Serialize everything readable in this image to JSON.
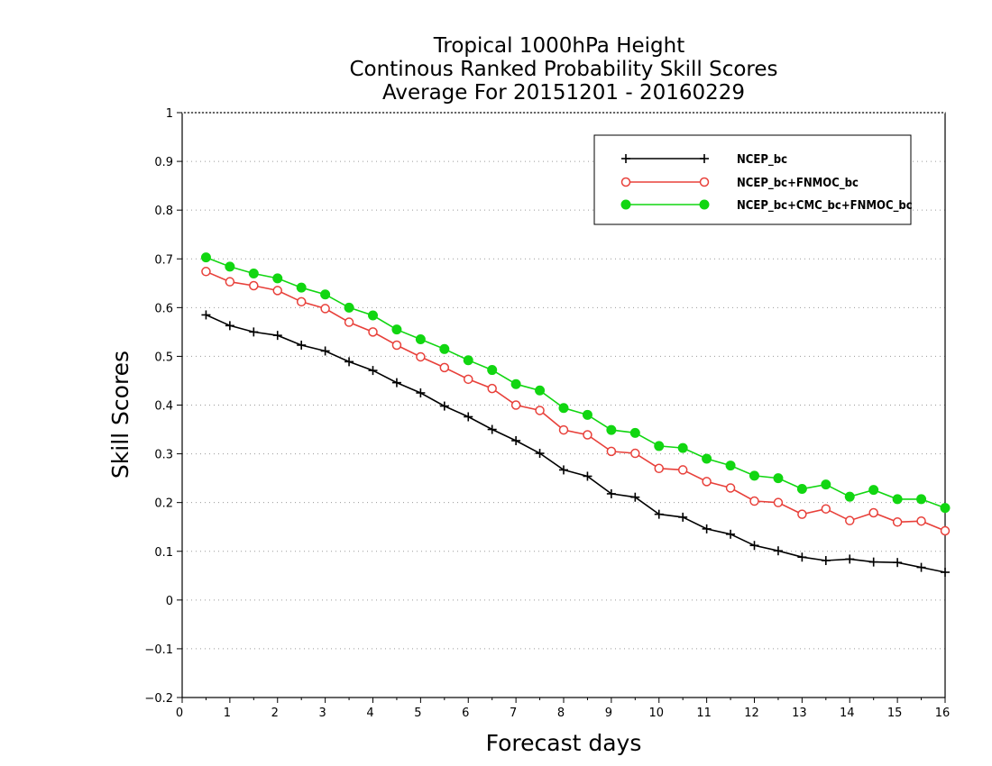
{
  "chart_data": {
    "type": "line",
    "title_lines": [
      "Tropical 1000hPa Height",
      "Continous Ranked Probability Skill Scores",
      "Average For 20151201 - 20160229"
    ],
    "xlabel": "Forecast days",
    "ylabel": "Skill Scores",
    "xlim": [
      0,
      16
    ],
    "ylim": [
      -0.2,
      1
    ],
    "xticks": [
      0,
      1,
      2,
      3,
      4,
      5,
      6,
      7,
      8,
      9,
      10,
      11,
      12,
      13,
      14,
      15,
      16
    ],
    "yticks": [
      -0.2,
      -0.1,
      0,
      0.1,
      0.2,
      0.3,
      0.4,
      0.5,
      0.6,
      0.7,
      0.8,
      0.9,
      1
    ],
    "ytick_labels": [
      "−0.2",
      "−0.1",
      "0",
      "0.1",
      "0.2",
      "0.3",
      "0.4",
      "0.5",
      "0.6",
      "0.7",
      "0.8",
      "0.9",
      "1"
    ],
    "grid": true,
    "legend_position": "top-right",
    "x": [
      0.5,
      1.0,
      1.5,
      2.0,
      2.5,
      3.0,
      3.5,
      4.0,
      4.5,
      5.0,
      5.5,
      6.0,
      6.5,
      7.0,
      7.5,
      8.0,
      8.5,
      9.0,
      9.5,
      10.0,
      10.5,
      11.0,
      11.5,
      12.0,
      12.5,
      13.0,
      13.5,
      14.0,
      14.5,
      15.0,
      15.5,
      16.0
    ],
    "series": [
      {
        "name": "NCEP_bc",
        "color": "#000000",
        "marker": "plus",
        "values": [
          0.585,
          0.563,
          0.55,
          0.543,
          0.523,
          0.511,
          0.489,
          0.471,
          0.446,
          0.425,
          0.398,
          0.376,
          0.35,
          0.327,
          0.301,
          0.267,
          0.254,
          0.218,
          0.211,
          0.176,
          0.17,
          0.146,
          0.135,
          0.112,
          0.101,
          0.088,
          0.081,
          0.084,
          0.078,
          0.077,
          0.067,
          0.057
        ]
      },
      {
        "name": "NCEP_bc+FNMOC_bc",
        "color": "#e8403a",
        "marker": "open-circle",
        "values": [
          0.674,
          0.653,
          0.645,
          0.635,
          0.612,
          0.598,
          0.57,
          0.55,
          0.523,
          0.499,
          0.477,
          0.453,
          0.434,
          0.4,
          0.389,
          0.349,
          0.339,
          0.305,
          0.301,
          0.27,
          0.267,
          0.243,
          0.23,
          0.203,
          0.2,
          0.176,
          0.187,
          0.163,
          0.179,
          0.16,
          0.162,
          0.142
        ]
      },
      {
        "name": "NCEP_bc+CMC_bc+FNMOC_bc",
        "color": "#11d611",
        "marker": "filled-circle",
        "values": [
          0.703,
          0.684,
          0.67,
          0.66,
          0.641,
          0.627,
          0.6,
          0.584,
          0.555,
          0.535,
          0.515,
          0.492,
          0.472,
          0.443,
          0.43,
          0.394,
          0.38,
          0.349,
          0.343,
          0.316,
          0.312,
          0.29,
          0.276,
          0.255,
          0.25,
          0.228,
          0.237,
          0.212,
          0.226,
          0.207,
          0.207,
          0.189
        ]
      }
    ]
  }
}
